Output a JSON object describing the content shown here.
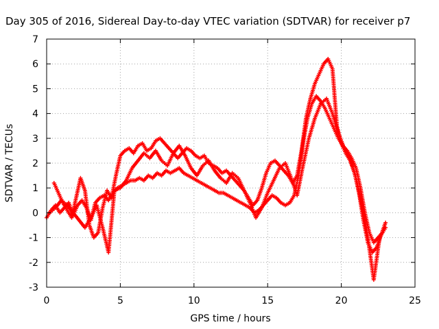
{
  "chart_data": {
    "type": "scatter",
    "title": "Day 305 of 2016, Sidereal Day-to-day VTEC variation (SDTVAR) for receiver p7",
    "xlabel": "GPS time / hours",
    "ylabel": "SDTVAR / TECUs",
    "xlim": [
      0,
      25
    ],
    "ylim": [
      -3,
      7
    ],
    "xticks": [
      "0",
      "5",
      "10",
      "15",
      "20",
      "25"
    ],
    "yticks": [
      "-3",
      "-2",
      "-1",
      "0",
      "1",
      "2",
      "3",
      "4",
      "5",
      "6",
      "7"
    ],
    "grid": true,
    "marker": "plus",
    "color": "#ff0000",
    "series": [
      {
        "x": [
          0.0,
          0.3,
          0.6,
          0.9,
          1.2,
          1.5,
          1.8,
          2.1,
          2.4,
          2.7,
          3.0,
          3.3,
          3.6,
          3.9,
          4.2,
          4.5,
          4.8,
          5.1,
          5.4,
          5.7,
          6.0,
          6.3,
          6.6,
          6.9,
          7.2,
          7.5,
          7.8,
          8.1,
          8.4,
          8.7,
          9.0,
          9.3,
          9.6,
          9.9,
          10.2,
          10.5,
          10.8,
          11.1,
          11.4,
          11.7,
          12.0,
          12.3,
          12.6,
          12.9,
          13.2,
          13.5,
          13.8,
          14.1,
          14.4,
          14.7,
          15.0,
          15.3,
          15.6,
          15.9,
          16.2,
          16.5,
          16.8,
          17.1,
          17.4,
          17.7,
          18.0,
          18.3,
          18.6,
          18.9,
          19.2,
          19.5,
          19.8,
          20.1,
          20.4,
          20.7,
          21.0,
          21.3,
          21.6,
          21.9,
          22.2,
          22.5,
          22.8,
          23.0
        ],
        "y": [
          -0.2,
          0.1,
          0.3,
          0.0,
          0.2,
          0.4,
          -0.1,
          0.3,
          0.5,
          0.2,
          -0.3,
          0.4,
          0.6,
          0.7,
          0.5,
          0.8,
          1.0,
          1.1,
          1.2,
          1.3,
          1.3,
          1.4,
          1.3,
          1.5,
          1.4,
          1.6,
          1.5,
          1.7,
          1.6,
          1.7,
          1.8,
          1.6,
          1.5,
          1.4,
          1.3,
          1.2,
          1.1,
          1.0,
          0.9,
          0.8,
          0.8,
          0.7,
          0.6,
          0.5,
          0.4,
          0.3,
          0.2,
          0.0,
          0.1,
          0.3,
          0.5,
          0.7,
          0.6,
          0.4,
          0.3,
          0.4,
          0.7,
          1.5,
          2.8,
          3.8,
          4.4,
          4.7,
          4.5,
          4.2,
          3.8,
          3.4,
          3.0,
          2.7,
          2.5,
          2.2,
          1.8,
          1.0,
          0.0,
          -0.8,
          -1.2,
          -1.0,
          -0.8,
          -0.6
        ]
      },
      {
        "x": [
          0.5,
          0.8,
          1.1,
          1.4,
          1.7,
          2.0,
          2.3,
          2.6,
          2.9,
          3.2,
          3.5,
          3.8,
          4.1,
          4.4,
          4.7,
          5.0,
          5.3,
          5.6,
          5.9,
          6.2,
          6.5,
          6.8,
          7.1,
          7.4,
          7.7,
          8.0,
          8.3,
          8.6,
          8.9,
          9.2,
          9.5,
          9.8,
          10.1,
          10.4,
          10.7,
          11.0,
          11.3,
          11.6,
          11.9,
          12.2,
          12.5,
          12.8,
          13.1,
          13.4,
          13.7,
          14.0,
          14.3,
          14.6,
          14.9,
          15.2,
          15.5,
          15.8,
          16.1,
          16.4,
          16.7,
          17.0,
          17.3,
          17.6,
          17.9,
          18.2,
          18.5,
          18.8,
          19.1,
          19.4,
          19.7,
          20.0,
          20.3,
          20.6,
          20.9,
          21.2,
          21.5,
          21.8,
          22.1,
          22.4,
          22.7,
          23.0
        ],
        "y": [
          1.2,
          0.8,
          0.4,
          0.1,
          -0.2,
          0.6,
          1.4,
          0.9,
          -0.5,
          -1.0,
          -0.8,
          0.2,
          0.9,
          0.6,
          1.5,
          2.3,
          2.5,
          2.6,
          2.4,
          2.7,
          2.8,
          2.5,
          2.6,
          2.9,
          3.0,
          2.8,
          2.6,
          2.4,
          2.2,
          2.4,
          2.6,
          2.5,
          2.3,
          2.2,
          2.3,
          2.0,
          1.9,
          1.8,
          1.6,
          1.7,
          1.5,
          1.3,
          1.1,
          0.9,
          0.6,
          0.3,
          0.5,
          1.0,
          1.6,
          2.0,
          2.1,
          1.9,
          1.7,
          1.5,
          1.2,
          1.5,
          2.5,
          3.8,
          4.6,
          5.2,
          5.6,
          6.0,
          6.2,
          5.8,
          3.5,
          2.8,
          2.4,
          2.1,
          1.6,
          0.8,
          -0.3,
          -1.2,
          -1.6,
          -1.4,
          -0.9,
          -0.4
        ]
      },
      {
        "x": [
          0.2,
          0.6,
          1.0,
          1.4,
          1.8,
          2.2,
          2.6,
          3.0,
          3.4,
          3.8,
          4.2,
          4.6,
          5.0,
          5.4,
          5.8,
          6.2,
          6.6,
          7.0,
          7.4,
          7.8,
          8.2,
          8.6,
          9.0,
          9.4,
          9.8,
          10.2,
          10.6,
          11.0,
          11.4,
          11.8,
          12.2,
          12.6,
          13.0,
          13.4,
          13.8,
          14.2,
          14.6,
          15.0,
          15.4,
          15.8,
          16.2,
          16.6,
          17.0,
          17.4,
          17.8,
          18.2,
          18.6,
          19.0,
          19.4,
          19.8,
          20.2,
          20.6,
          21.0,
          21.4,
          21.8,
          22.2,
          22.6
        ],
        "y": [
          0.0,
          0.2,
          0.5,
          0.3,
          0.0,
          -0.3,
          -0.6,
          -0.2,
          0.3,
          -0.6,
          -1.6,
          0.9,
          1.0,
          1.3,
          1.8,
          2.1,
          2.4,
          2.2,
          2.5,
          2.1,
          1.9,
          2.4,
          2.7,
          2.3,
          1.8,
          1.5,
          1.9,
          2.1,
          1.7,
          1.4,
          1.2,
          1.6,
          1.4,
          0.9,
          0.4,
          -0.2,
          0.2,
          0.8,
          1.3,
          1.8,
          2.0,
          1.4,
          0.7,
          1.9,
          3.0,
          3.8,
          4.4,
          4.6,
          4.0,
          3.2,
          2.6,
          2.2,
          1.4,
          0.3,
          -1.0,
          -2.7,
          -1.0
        ]
      }
    ]
  }
}
